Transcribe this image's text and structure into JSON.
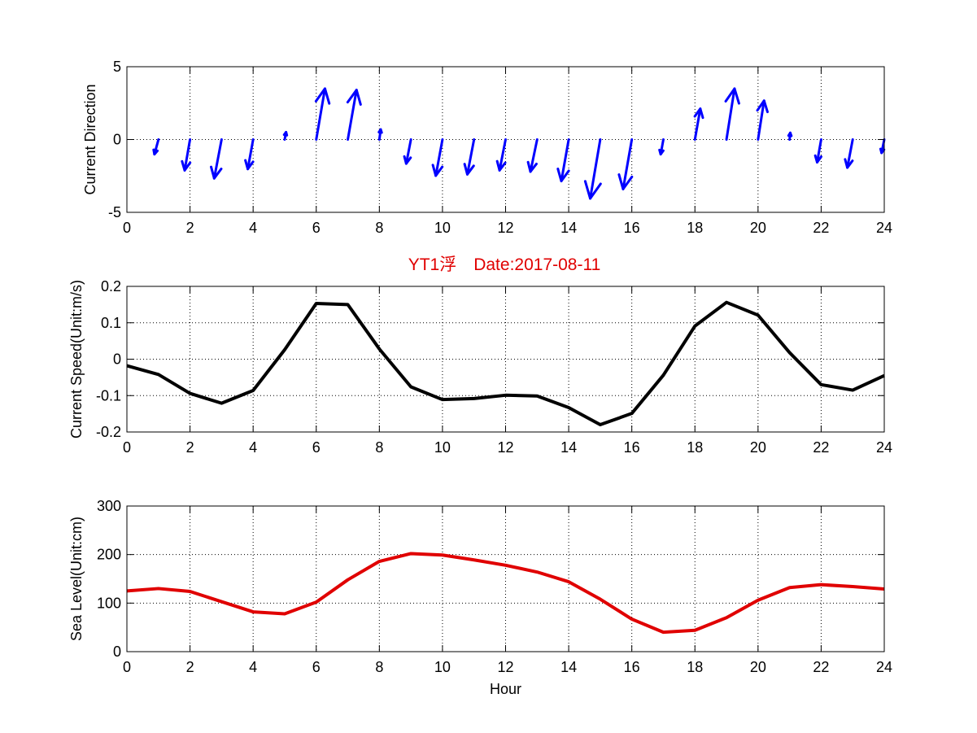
{
  "figure": {
    "title": "YT1浮　Date:2017-08-11",
    "title_color": "#e00000"
  },
  "chart_data": [
    {
      "type": "quiver",
      "ylabel": "Current Direction",
      "xlabel": "",
      "xlim": [
        0,
        24
      ],
      "ylim": [
        -5,
        5
      ],
      "xticks": [
        0,
        2,
        4,
        6,
        8,
        10,
        12,
        14,
        16,
        18,
        20,
        22,
        24
      ],
      "yticks": [
        -5,
        0,
        5
      ],
      "grid": true,
      "color": "#0000ff",
      "vectors": [
        {
          "x": 1,
          "u": -0.3,
          "v": -1.1
        },
        {
          "x": 2,
          "u": -0.4,
          "v": -2.3
        },
        {
          "x": 3,
          "u": -0.55,
          "v": -2.9
        },
        {
          "x": 4,
          "u": -0.4,
          "v": -2.2
        },
        {
          "x": 5,
          "u": 0.1,
          "v": 0.55
        },
        {
          "x": 6,
          "u": 0.65,
          "v": 3.8
        },
        {
          "x": 7,
          "u": 0.65,
          "v": 3.7
        },
        {
          "x": 8,
          "u": 0.1,
          "v": 0.75
        },
        {
          "x": 9,
          "u": -0.35,
          "v": -1.8
        },
        {
          "x": 10,
          "u": -0.5,
          "v": -2.7
        },
        {
          "x": 11,
          "u": -0.5,
          "v": -2.6
        },
        {
          "x": 12,
          "u": -0.45,
          "v": -2.3
        },
        {
          "x": 13,
          "u": -0.5,
          "v": -2.4
        },
        {
          "x": 14,
          "u": -0.55,
          "v": -3.1
        },
        {
          "x": 15,
          "u": -0.75,
          "v": -4.4
        },
        {
          "x": 16,
          "u": -0.65,
          "v": -3.7
        },
        {
          "x": 17,
          "u": -0.2,
          "v": -1.1
        },
        {
          "x": 18,
          "u": 0.4,
          "v": 2.3
        },
        {
          "x": 19,
          "u": 0.6,
          "v": 3.8
        },
        {
          "x": 20,
          "u": 0.45,
          "v": 2.9
        },
        {
          "x": 21,
          "u": 0.05,
          "v": 0.5
        },
        {
          "x": 22,
          "u": -0.3,
          "v": -1.7
        },
        {
          "x": 23,
          "u": -0.4,
          "v": -2.1
        },
        {
          "x": 24,
          "u": -0.2,
          "v": -1.0
        }
      ]
    },
    {
      "type": "line",
      "ylabel": "Current Speed(Unit:m/s)",
      "xlabel": "",
      "xlim": [
        0,
        24
      ],
      "ylim": [
        -0.2,
        0.2
      ],
      "xticks": [
        0,
        2,
        4,
        6,
        8,
        10,
        12,
        14,
        16,
        18,
        20,
        22,
        24
      ],
      "yticks": [
        -0.2,
        -0.1,
        0,
        0.1,
        0.2
      ],
      "ytick_labels": [
        "-0.2",
        "-0.1",
        "0",
        "0.1",
        "0.2"
      ],
      "grid": true,
      "color": "#000000",
      "x": [
        0,
        1,
        2,
        3,
        4,
        5,
        6,
        7,
        8,
        9,
        10,
        11,
        12,
        13,
        14,
        15,
        16,
        17,
        18,
        19,
        20,
        21,
        22,
        23,
        24
      ],
      "y": [
        -0.018,
        -0.042,
        -0.094,
        -0.121,
        -0.086,
        0.026,
        0.153,
        0.15,
        0.028,
        -0.076,
        -0.111,
        -0.108,
        -0.099,
        -0.101,
        -0.133,
        -0.18,
        -0.149,
        -0.044,
        0.091,
        0.156,
        0.121,
        0.018,
        -0.07,
        -0.085,
        -0.045
      ]
    },
    {
      "type": "line",
      "ylabel": "Sea Level(Unit:cm)",
      "xlabel": "Hour",
      "xlim": [
        0,
        24
      ],
      "ylim": [
        0,
        300
      ],
      "xticks": [
        0,
        2,
        4,
        6,
        8,
        10,
        12,
        14,
        16,
        18,
        20,
        22,
        24
      ],
      "yticks": [
        0,
        100,
        200,
        300
      ],
      "grid": true,
      "color": "#e00000",
      "x": [
        0,
        1,
        2,
        3,
        4,
        5,
        6,
        7,
        8,
        9,
        10,
        11,
        12,
        13,
        14,
        15,
        16,
        17,
        18,
        19,
        20,
        21,
        22,
        23,
        24
      ],
      "y": [
        125,
        130,
        124,
        103,
        82,
        78,
        102,
        148,
        186,
        202,
        199,
        189,
        178,
        164,
        144,
        108,
        67,
        40,
        44,
        70,
        106,
        132,
        138,
        134,
        129
      ]
    }
  ]
}
